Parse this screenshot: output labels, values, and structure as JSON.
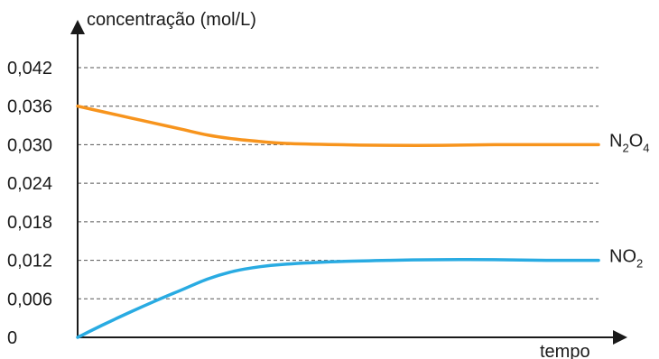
{
  "chart_data": {
    "type": "line",
    "ylabel": "concentração (mol/L)",
    "xlabel": "tempo",
    "ylim": [
      0,
      0.042
    ],
    "yticks": [
      "0",
      "0,006",
      "0,012",
      "0,018",
      "0,024",
      "0,030",
      "0,036",
      "0,042"
    ],
    "grid": true,
    "x_ticks_shown": false,
    "series": [
      {
        "id": "n2o4",
        "name": "N2O4",
        "label_main": [
          "N",
          "O"
        ],
        "label_sub": [
          "2",
          "4"
        ],
        "color": "#f7941d",
        "x": [
          0,
          0.05,
          0.1,
          0.15,
          0.2,
          0.25,
          0.3,
          0.35,
          0.4,
          0.5,
          0.6,
          0.7,
          0.8,
          0.9,
          1.0
        ],
        "y": [
          0.036,
          0.0351,
          0.0342,
          0.0333,
          0.0324,
          0.0315,
          0.0309,
          0.0305,
          0.0302,
          0.03,
          0.0299,
          0.0299,
          0.03,
          0.03,
          0.03
        ]
      },
      {
        "id": "no2",
        "name": "NO2",
        "label_main": [
          "NO"
        ],
        "label_sub": [
          "2"
        ],
        "color": "#29abe2",
        "x": [
          0,
          0.05,
          0.1,
          0.15,
          0.2,
          0.25,
          0.3,
          0.35,
          0.4,
          0.5,
          0.6,
          0.7,
          0.8,
          0.9,
          1.0
        ],
        "y": [
          0,
          0.002,
          0.0039,
          0.0057,
          0.0074,
          0.0091,
          0.0103,
          0.011,
          0.0114,
          0.0118,
          0.012,
          0.0121,
          0.0121,
          0.012,
          0.012
        ]
      }
    ]
  }
}
